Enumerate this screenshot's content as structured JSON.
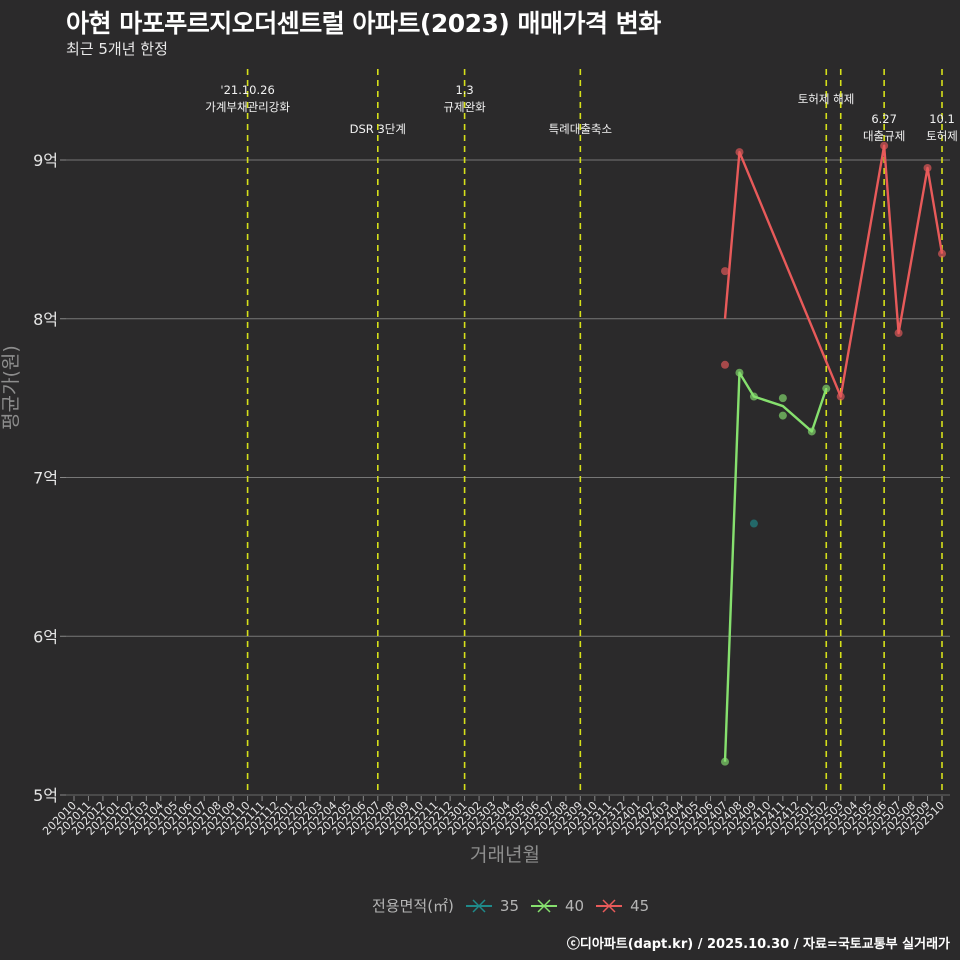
{
  "header": {
    "title": "아현 마포푸르지오더센트럴 아파트(2023) 매매가격 변화",
    "subtitle": "최근 5개년 한정"
  },
  "axes": {
    "xlabel": "거래년월",
    "ylabel": "평균가(원)"
  },
  "legend": {
    "title": "전용면적(㎡)",
    "items": [
      {
        "label": "35",
        "color": "#1f8a8a"
      },
      {
        "label": "40",
        "color": "#86e06e"
      },
      {
        "label": "45",
        "color": "#e85a5a"
      }
    ]
  },
  "caption": "ⓒ디아파트(dapt.kr) / 2025.10.30 / 자료=국토교통부 실거래가",
  "chart_data": {
    "type": "line",
    "title": "아현 마포푸르지오더센트럴 아파트(2023) 매매가격 변화",
    "subtitle": "최근 5개년 한정",
    "xlabel": "거래년월",
    "ylabel": "평균가(원)",
    "ylim": [
      5,
      9.2
    ],
    "y_unit": "억",
    "y_ticks": [
      {
        "value": 5,
        "label": "5억"
      },
      {
        "value": 6,
        "label": "6억"
      },
      {
        "value": 7,
        "label": "7억"
      },
      {
        "value": 8,
        "label": "8억"
      },
      {
        "value": 9,
        "label": "9억"
      }
    ],
    "x_ticks": [
      "202010",
      "202011",
      "202012",
      "202101",
      "202102",
      "202103",
      "202104",
      "202105",
      "202106",
      "202107",
      "202108",
      "202109",
      "202110",
      "202111",
      "202112",
      "202201",
      "202202",
      "202203",
      "202204",
      "202205",
      "202206",
      "202207",
      "202208",
      "202209",
      "202210",
      "202211",
      "202212",
      "202301",
      "202302",
      "202303",
      "202304",
      "202305",
      "202306",
      "202307",
      "202308",
      "202309",
      "202310",
      "202311",
      "202312",
      "202401",
      "202402",
      "202403",
      "202404",
      "202405",
      "202406",
      "202407",
      "202408",
      "202409",
      "202410",
      "202411",
      "202412",
      "202501",
      "202502",
      "202503",
      "202504",
      "202505",
      "202506",
      "202507",
      "202508",
      "202509",
      "202510"
    ],
    "grid": true,
    "legend_position": "bottom",
    "series": [
      {
        "name": "35",
        "color": "#1f8a8a",
        "line": [],
        "points": [
          {
            "x": "202409",
            "y": 6.71
          }
        ]
      },
      {
        "name": "40",
        "color": "#86e06e",
        "line": [
          {
            "x": "202407",
            "y": 5.21
          },
          {
            "x": "202408",
            "y": 7.66
          },
          {
            "x": "202409",
            "y": 7.51
          },
          {
            "x": "202411",
            "y": 7.45
          },
          {
            "x": "202501",
            "y": 7.29
          },
          {
            "x": "202502",
            "y": 7.56
          }
        ],
        "points": [
          {
            "x": "202407",
            "y": 5.21
          },
          {
            "x": "202408",
            "y": 7.66
          },
          {
            "x": "202409",
            "y": 7.51
          },
          {
            "x": "202411",
            "y": 7.5
          },
          {
            "x": "202411",
            "y": 7.39
          },
          {
            "x": "202501",
            "y": 7.29
          },
          {
            "x": "202502",
            "y": 7.56
          }
        ]
      },
      {
        "name": "45",
        "color": "#e85a5a",
        "line": [
          {
            "x": "202407",
            "y": 8.0
          },
          {
            "x": "202408",
            "y": 9.05
          },
          {
            "x": "202503",
            "y": 7.51
          },
          {
            "x": "202506",
            "y": 9.09
          },
          {
            "x": "202507",
            "y": 7.91
          },
          {
            "x": "202509",
            "y": 8.95
          },
          {
            "x": "202510",
            "y": 8.41
          }
        ],
        "points": [
          {
            "x": "202407",
            "y": 8.3
          },
          {
            "x": "202407",
            "y": 7.71
          },
          {
            "x": "202408",
            "y": 9.05
          },
          {
            "x": "202503",
            "y": 7.51
          },
          {
            "x": "202506",
            "y": 9.09
          },
          {
            "x": "202507",
            "y": 7.91
          },
          {
            "x": "202509",
            "y": 8.95
          },
          {
            "x": "202510",
            "y": 8.41
          }
        ]
      }
    ],
    "annotations": [
      {
        "x": "202110",
        "lines": [
          "'21.10.26",
          "가계부채관리강화"
        ],
        "row": 0
      },
      {
        "x": "202207",
        "lines": [
          "DSR 3단계"
        ],
        "row": 1
      },
      {
        "x": "202301",
        "lines": [
          "1.3",
          "규제완화"
        ],
        "row": 0
      },
      {
        "x": "202309",
        "lines": [
          "특례대출축소"
        ],
        "row": 1
      },
      {
        "x": "202502",
        "lines": [
          "토허제 해제"
        ],
        "row": 0,
        "label_only": false
      },
      {
        "x": "202503",
        "lines": [],
        "row": 0
      },
      {
        "x": "202506",
        "lines": [
          "6.27",
          "대출규제"
        ],
        "row": 1
      },
      {
        "x": "202510",
        "lines": [
          "10.1",
          "토허제"
        ],
        "row": 1
      }
    ]
  }
}
